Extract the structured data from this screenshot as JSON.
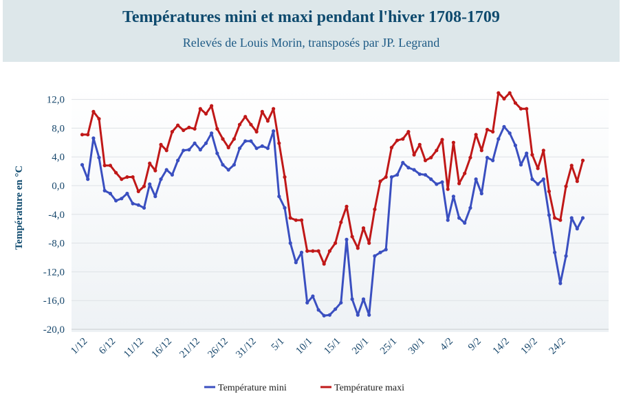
{
  "chart_data": {
    "type": "line",
    "title": "Températures mini et maxi pendant l'hiver 1708-1709",
    "subtitle": "Relevés de Louis Morin, transposés par JP. Legrand",
    "ylabel": "Température en °C",
    "xlabel": "",
    "ylim": [
      -20,
      13
    ],
    "yticks": [
      "12,0",
      "8,0",
      "4,0",
      "0,0",
      "-4,0",
      "-8,0",
      "-12,0",
      "-16,0",
      "-20,0"
    ],
    "ytick_values": [
      12,
      8,
      4,
      0,
      -4,
      -8,
      -12,
      -16,
      -20
    ],
    "categories": [
      "1/12",
      "2/12",
      "3/12",
      "4/12",
      "5/12",
      "6/12",
      "7/12",
      "8/12",
      "9/12",
      "10/12",
      "11/12",
      "12/12",
      "13/12",
      "14/12",
      "15/12",
      "16/12",
      "17/12",
      "18/12",
      "19/12",
      "20/12",
      "21/12",
      "22/12",
      "23/12",
      "24/12",
      "25/12",
      "26/12",
      "27/12",
      "28/12",
      "29/12",
      "30/12",
      "31/12",
      "1/1",
      "2/1",
      "3/1",
      "4/1",
      "5/1",
      "6/1",
      "7/1",
      "8/1",
      "9/1",
      "10/1",
      "11/1",
      "12/1",
      "13/1",
      "14/1",
      "15/1",
      "16/1",
      "17/1",
      "18/1",
      "19/1",
      "20/1",
      "21/1",
      "22/1",
      "23/1",
      "24/1",
      "25/1",
      "26/1",
      "27/1",
      "28/1",
      "29/1",
      "30/1",
      "31/1",
      "1/2",
      "2/2",
      "3/2",
      "4/2",
      "5/2",
      "6/2",
      "7/2",
      "8/2",
      "9/2",
      "10/2",
      "11/2",
      "12/2",
      "13/2",
      "14/2",
      "15/2",
      "16/2",
      "17/2",
      "18/2",
      "19/2",
      "20/2",
      "21/2",
      "22/2",
      "23/2",
      "24/2",
      "25/2",
      "26/2",
      "27/2",
      "28/2"
    ],
    "xtick_labels": [
      "1/12",
      "6/12",
      "11/12",
      "16/12",
      "21/12",
      "26/12",
      "31/12",
      "5/1",
      "10/1",
      "15/1",
      "20/1",
      "25/1",
      "30/1",
      "4/2",
      "9/2",
      "14/2",
      "19/2",
      "24/2"
    ],
    "xtick_indices": [
      0,
      5,
      10,
      15,
      20,
      25,
      30,
      35,
      40,
      45,
      50,
      55,
      60,
      65,
      70,
      75,
      80,
      85
    ],
    "grid": true,
    "legend_position": "bottom",
    "series": [
      {
        "name": "Température mini",
        "color": "#3a4fc0",
        "values": [
          2.9,
          0.9,
          6.6,
          3.9,
          -0.7,
          -1.1,
          -2.1,
          -1.8,
          -1.1,
          -2.5,
          -2.7,
          -3.1,
          0.2,
          -1.5,
          0.9,
          2.2,
          1.5,
          3.5,
          4.9,
          5.0,
          5.9,
          5.0,
          5.9,
          7.3,
          4.5,
          2.9,
          2.2,
          2.9,
          5.2,
          6.2,
          6.2,
          5.2,
          5.5,
          5.2,
          7.6,
          -1.5,
          -3.1,
          -8.0,
          -10.7,
          -9.3,
          -16.3,
          -15.4,
          -17.3,
          -18.1,
          -18.0,
          -17.2,
          -16.3,
          -7.5,
          -15.8,
          -18.0,
          -15.8,
          -18.0,
          -9.8,
          -9.3,
          -8.9,
          1.2,
          1.5,
          3.2,
          2.5,
          2.2,
          1.6,
          1.5,
          0.9,
          0.2,
          0.5,
          -4.8,
          -1.5,
          -4.5,
          -5.2,
          -3.1,
          0.9,
          -1.1,
          3.9,
          3.5,
          6.5,
          8.2,
          7.3,
          5.6,
          2.9,
          4.5,
          0.9,
          0.2,
          0.9,
          -4.1,
          -9.3,
          -13.6,
          -9.8,
          -4.5,
          -6.0,
          -4.5
        ]
      },
      {
        "name": "Température maxi",
        "color": "#c01818",
        "values": [
          7.1,
          7.1,
          10.3,
          9.3,
          2.8,
          2.8,
          1.8,
          0.9,
          1.2,
          1.2,
          -0.8,
          -0.1,
          3.1,
          2.1,
          5.7,
          4.9,
          7.5,
          8.4,
          7.7,
          8.1,
          7.9,
          10.7,
          10.0,
          11.1,
          7.9,
          6.5,
          5.3,
          6.5,
          8.5,
          9.6,
          8.5,
          7.5,
          10.3,
          9.0,
          10.7,
          5.9,
          1.2,
          -4.5,
          -4.8,
          -4.8,
          -9.1,
          -9.1,
          -9.1,
          -10.9,
          -9.1,
          -8.0,
          -5.1,
          -2.9,
          -7.1,
          -8.7,
          -5.9,
          -8.0,
          -3.3,
          0.6,
          1.2,
          5.3,
          6.3,
          6.5,
          7.5,
          4.3,
          5.7,
          3.5,
          3.9,
          4.9,
          6.4,
          -0.5,
          6.0,
          0.3,
          1.7,
          3.9,
          7.1,
          4.9,
          7.8,
          7.5,
          12.9,
          12.1,
          12.9,
          11.5,
          10.7,
          10.7,
          4.3,
          2.4,
          4.9,
          -0.8,
          -4.5,
          -4.8,
          -0.1,
          2.8,
          0.6,
          3.5
        ]
      }
    ]
  }
}
